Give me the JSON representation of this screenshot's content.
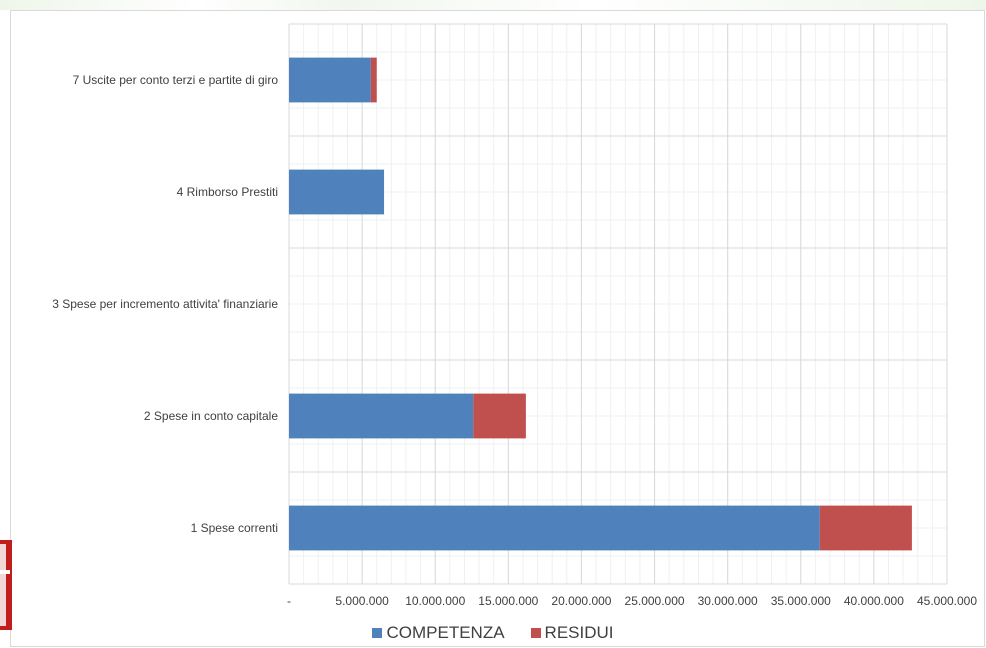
{
  "chart_data": {
    "type": "bar",
    "orientation": "horizontal",
    "stacked": true,
    "categories": [
      "7 Uscite per conto terzi e partite di giro",
      "4 Rimborso Prestiti",
      "3 Spese per incremento attivita' finanziarie",
      "2 Spese in conto capitale",
      "1 Spese correnti"
    ],
    "series": [
      {
        "name": "COMPETENZA",
        "color": "#4f81bd",
        "values": [
          5600000,
          6500000,
          0,
          12600000,
          36300000
        ]
      },
      {
        "name": "RESIDUI",
        "color": "#c0504d",
        "values": [
          400000,
          0,
          0,
          3600000,
          6300000
        ]
      }
    ],
    "xlim": [
      0,
      45000000
    ],
    "x_ticks": [
      0,
      5000000,
      10000000,
      15000000,
      20000000,
      25000000,
      30000000,
      35000000,
      40000000,
      45000000
    ],
    "x_tick_labels": [
      "-",
      "5.000.000",
      "10.000.000",
      "15.000.000",
      "20.000.000",
      "25.000.000",
      "30.000.000",
      "35.000.000",
      "40.000.000",
      "45.000.000"
    ],
    "grid": true,
    "legend_position": "bottom"
  }
}
